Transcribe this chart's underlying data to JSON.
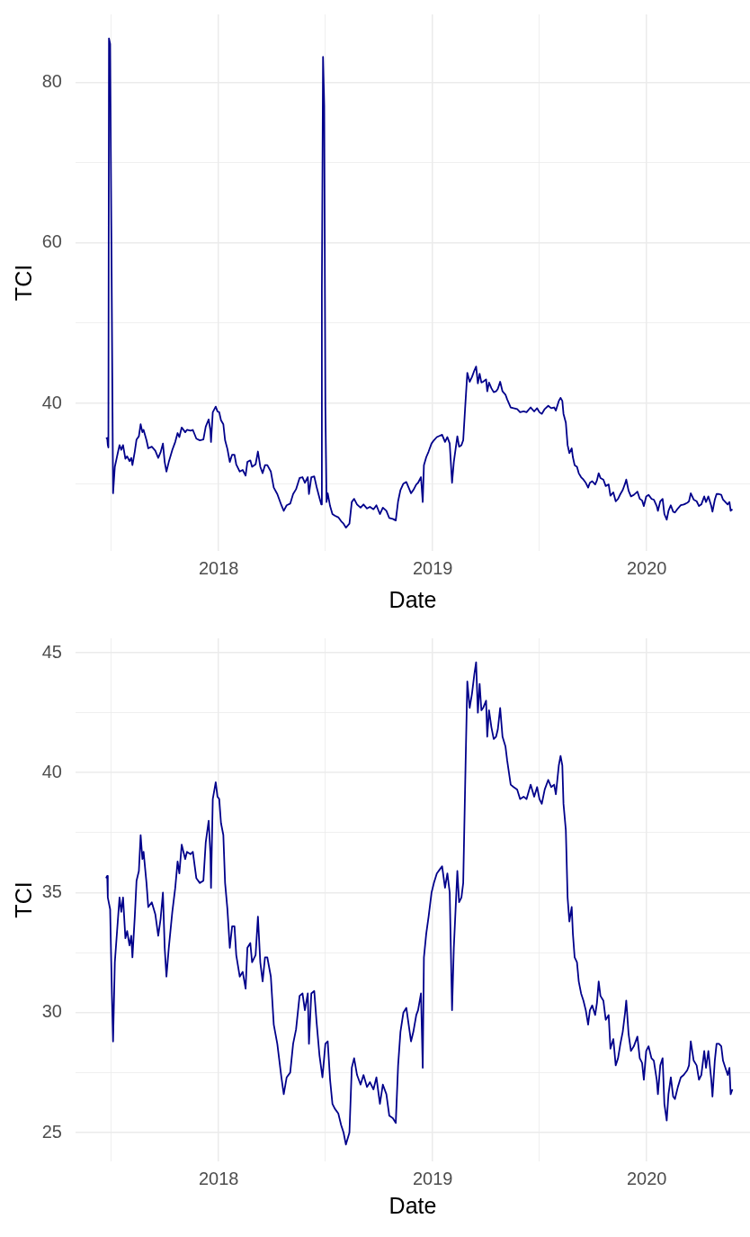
{
  "chart_data": [
    {
      "type": "line",
      "xlabel": "Date",
      "ylabel": "TCI",
      "color": "#00008b",
      "grid": true,
      "xlim": [
        "2017-05-02",
        "2020-06-25"
      ],
      "xticks": [
        {
          "value": "2017-07",
          "label": null
        },
        "2018",
        {
          "value": "2018-07",
          "label": null
        },
        "2019",
        {
          "value": "2019-07",
          "label": null
        },
        "2020"
      ],
      "ylim": [
        21.6,
        88.5
      ],
      "yticks": [
        {
          "value": 30,
          "label": null
        },
        40,
        {
          "value": 50,
          "label": null
        },
        60,
        {
          "value": 70,
          "label": null
        },
        80
      ],
      "x": [
        "2017-06-23",
        "2017-06-25",
        "2017-06-26",
        "2017-06-27",
        "2017-06-28",
        "2017-06-30",
        "2017-07-02",
        "2017-07-05",
        "2017-07-08",
        "2017-07-13",
        "2017-07-16",
        "2017-07-19",
        "2017-07-22",
        "2017-07-26",
        "2017-07-29",
        "2017-08-02",
        "2017-08-05",
        "2017-08-07",
        "2017-08-11",
        "2017-08-14",
        "2017-08-18",
        "2017-08-21",
        "2017-08-24",
        "2017-08-26",
        "2017-08-31",
        "2017-09-03",
        "2017-09-09",
        "2017-09-15",
        "2017-09-20",
        "2017-09-24",
        "2017-09-28",
        "2017-10-01",
        "2017-10-04",
        "2017-10-08",
        "2017-10-14",
        "2017-10-19",
        "2017-10-23",
        "2017-10-26",
        "2017-10-30",
        "2017-11-05",
        "2017-11-08",
        "2017-11-14",
        "2017-11-18",
        "2017-11-24",
        "2017-11-30",
        "2017-12-06",
        "2017-12-10",
        "2017-12-15",
        "2017-12-18",
        "2017-12-19",
        "2017-12-22",
        "2017-12-27",
        "2017-12-30",
        "2018-01-02",
        "2018-01-05",
        "2018-01-09",
        "2018-01-12",
        "2018-01-16",
        "2018-01-20",
        "2018-01-24",
        "2018-01-28",
        "2018-01-31",
        "2018-02-06",
        "2018-02-11",
        "2018-02-16",
        "2018-02-19",
        "2018-02-24",
        "2018-02-27",
        "2018-03-05",
        "2018-03-09",
        "2018-03-13",
        "2018-03-17",
        "2018-03-21",
        "2018-03-25",
        "2018-03-31",
        "2018-04-05",
        "2018-04-11",
        "2018-04-18",
        "2018-04-22",
        "2018-04-27",
        "2018-05-03",
        "2018-05-08",
        "2018-05-13",
        "2018-05-19",
        "2018-05-24",
        "2018-05-28",
        "2018-06-02",
        "2018-06-04",
        "2018-06-08",
        "2018-06-13",
        "2018-06-17",
        "2018-06-22",
        "2018-06-25",
        "2018-06-26",
        "2018-06-28",
        "2018-06-30",
        "2018-07-02",
        "2018-07-04",
        "2018-07-06",
        "2018-07-10",
        "2018-07-14",
        "2018-07-18",
        "2018-07-24",
        "2018-07-29",
        "2018-08-02",
        "2018-08-06",
        "2018-08-12",
        "2018-08-16",
        "2018-08-20",
        "2018-08-25",
        "2018-08-31",
        "2018-09-05",
        "2018-09-11",
        "2018-09-16",
        "2018-09-22",
        "2018-09-27",
        "2018-10-03",
        "2018-10-08",
        "2018-10-14",
        "2018-10-19",
        "2018-10-25",
        "2018-10-30",
        "2018-11-03",
        "2018-11-07",
        "2018-11-12",
        "2018-11-17",
        "2018-11-21",
        "2018-11-25",
        "2018-11-29",
        "2018-12-04",
        "2018-12-07",
        "2018-12-12",
        "2018-12-15",
        "2018-12-17",
        "2018-12-21",
        "2018-12-25",
        "2018-12-30",
        "2019-01-03",
        "2019-01-08",
        "2019-01-14",
        "2019-01-17",
        "2019-01-22",
        "2019-01-26",
        "2019-01-30",
        "2019-02-03",
        "2019-02-06",
        "2019-02-09",
        "2019-02-12",
        "2019-02-15",
        "2019-02-19",
        "2019-02-22",
        "2019-02-26",
        "2019-03-01",
        "2019-03-05",
        "2019-03-09",
        "2019-03-13",
        "2019-03-16",
        "2019-03-19",
        "2019-03-22",
        "2019-03-25",
        "2019-03-28",
        "2019-04-02",
        "2019-04-04",
        "2019-04-07",
        "2019-04-11",
        "2019-04-15",
        "2019-04-19",
        "2019-04-22",
        "2019-04-26",
        "2019-04-30",
        "2019-05-05",
        "2019-05-08",
        "2019-05-14",
        "2019-05-19",
        "2019-05-25",
        "2019-05-30",
        "2019-06-05",
        "2019-06-10",
        "2019-06-17",
        "2019-06-23",
        "2019-06-28",
        "2019-07-02",
        "2019-07-06",
        "2019-07-11",
        "2019-07-17",
        "2019-07-22",
        "2019-07-27",
        "2019-07-30",
        "2019-08-04",
        "2019-08-07",
        "2019-08-10",
        "2019-08-12",
        "2019-08-16",
        "2019-08-19",
        "2019-08-22",
        "2019-08-26",
        "2019-08-28",
        "2019-08-31",
        "2019-09-04",
        "2019-09-07",
        "2019-09-11",
        "2019-09-15",
        "2019-09-19",
        "2019-09-23",
        "2019-09-26",
        "2019-09-30",
        "2019-10-05",
        "2019-10-08",
        "2019-10-11",
        "2019-10-14",
        "2019-10-19",
        "2019-10-23",
        "2019-10-28",
        "2019-10-31",
        "2019-11-05",
        "2019-11-09",
        "2019-11-13",
        "2019-11-17",
        "2019-11-21",
        "2019-11-25",
        "2019-11-27",
        "2019-12-01",
        "2019-12-05",
        "2019-12-10",
        "2019-12-16",
        "2019-12-20",
        "2019-12-24",
        "2019-12-27",
        "2019-12-31",
        "2020-01-04",
        "2020-01-09",
        "2020-01-13",
        "2020-01-18",
        "2020-01-20",
        "2020-01-24",
        "2020-01-28",
        "2020-01-31",
        "2020-02-04",
        "2020-02-07",
        "2020-02-11",
        "2020-02-15",
        "2020-02-18",
        "2020-02-23",
        "2020-02-28",
        "2020-03-04",
        "2020-03-10",
        "2020-03-13",
        "2020-03-16",
        "2020-03-21",
        "2020-03-26",
        "2020-03-30",
        "2020-04-03",
        "2020-04-08",
        "2020-04-11",
        "2020-04-15",
        "2020-04-20",
        "2020-04-22",
        "2020-04-26",
        "2020-04-29",
        "2020-05-03",
        "2020-05-07",
        "2020-05-10",
        "2020-05-14",
        "2020-05-18",
        "2020-05-21",
        "2020-05-23",
        "2020-05-26"
      ],
      "values": [
        35.6,
        35.7,
        34.8,
        34.5,
        85.5,
        84.8,
        62.2,
        28.8,
        32.1,
        33.8,
        34.8,
        34.2,
        34.8,
        33.1,
        33.4,
        32.8,
        33.2,
        32.3,
        34.0,
        35.5,
        35.9,
        37.4,
        36.4,
        36.7,
        35.4,
        34.4,
        34.6,
        34.1,
        33.2,
        33.9,
        35.0,
        32.7,
        31.5,
        32.7,
        34.2,
        35.2,
        36.3,
        35.8,
        37.0,
        36.4,
        36.7,
        36.6,
        36.7,
        35.6,
        35.4,
        35.5,
        37.1,
        38.0,
        36.6,
        35.2,
        38.9,
        39.6,
        39.0,
        38.9,
        37.9,
        37.4,
        35.4,
        34.3,
        32.7,
        33.6,
        33.6,
        32.4,
        31.5,
        31.7,
        31.0,
        32.7,
        32.9,
        32.1,
        32.4,
        34.0,
        32.1,
        31.3,
        32.3,
        32.3,
        31.5,
        29.5,
        28.7,
        27.3,
        26.6,
        27.3,
        27.5,
        28.7,
        29.3,
        30.7,
        30.8,
        30.1,
        30.8,
        28.7,
        30.8,
        30.9,
        29.6,
        28.2,
        27.4,
        54.0,
        83.2,
        77.1,
        39.6,
        27.7,
        28.8,
        27.2,
        26.2,
        26.0,
        25.8,
        25.3,
        25.0,
        24.5,
        25.0,
        27.7,
        28.1,
        27.4,
        27.0,
        27.4,
        26.9,
        27.1,
        26.8,
        27.3,
        26.2,
        27.0,
        26.6,
        25.7,
        25.6,
        25.4,
        27.8,
        29.2,
        30.0,
        30.2,
        29.5,
        28.8,
        29.2,
        29.9,
        30.1,
        30.8,
        27.7,
        32.3,
        33.3,
        34.0,
        35.0,
        35.4,
        35.8,
        36.0,
        36.1,
        35.2,
        35.8,
        35.0,
        30.1,
        32.7,
        34.3,
        35.9,
        34.6,
        34.8,
        35.4,
        40.3,
        43.8,
        42.7,
        43.3,
        44.1,
        44.6,
        42.5,
        43.7,
        42.6,
        42.7,
        43.0,
        41.5,
        42.6,
        41.9,
        41.4,
        41.5,
        41.8,
        42.7,
        41.5,
        41.1,
        40.5,
        39.5,
        39.4,
        39.3,
        38.9,
        39.0,
        38.9,
        39.5,
        39.0,
        39.4,
        38.9,
        38.7,
        39.3,
        39.7,
        39.4,
        39.5,
        39.1,
        40.3,
        40.7,
        40.3,
        38.7,
        37.6,
        34.8,
        33.8,
        34.4,
        33.3,
        32.3,
        32.1,
        31.3,
        30.8,
        30.5,
        30.1,
        29.5,
        30.1,
        30.3,
        29.9,
        30.4,
        31.3,
        30.7,
        30.5,
        29.7,
        29.9,
        28.5,
        28.9,
        27.8,
        28.1,
        28.7,
        29.2,
        30.0,
        30.5,
        29.1,
        28.4,
        28.6,
        29.0,
        28.1,
        27.9,
        27.2,
        28.4,
        28.6,
        28.1,
        28.0,
        27.2,
        26.6,
        27.8,
        28.1,
        26.2,
        25.5,
        26.6,
        27.3,
        26.5,
        26.4,
        26.9,
        27.3,
        27.4,
        27.6,
        27.8,
        28.8,
        28.0,
        27.8,
        27.2,
        27.4,
        28.4,
        27.7,
        28.4,
        27.2,
        26.5,
        28.0,
        28.7,
        28.7,
        28.6,
        28.0,
        27.7,
        27.4,
        27.7,
        26.6,
        26.8
      ]
    },
    {
      "type": "line",
      "xlabel": "Date",
      "ylabel": "TCI",
      "color": "#00008b",
      "grid": true,
      "xlim": [
        "2017-05-02",
        "2020-06-25"
      ],
      "xticks": [
        {
          "value": "2017-07",
          "label": null
        },
        "2018",
        {
          "value": "2018-07",
          "label": null
        },
        "2019",
        {
          "value": "2019-07",
          "label": null
        },
        "2020"
      ],
      "ylim": [
        23.8,
        45.6
      ],
      "yticks": [
        25,
        {
          "value": 27.5,
          "label": null
        },
        30,
        {
          "value": 32.5,
          "label": null
        },
        35,
        {
          "value": 37.5,
          "label": null
        },
        40,
        {
          "value": 42.5,
          "label": null
        },
        45
      ],
      "x": [
        "2017-06-23",
        "2017-06-25",
        "2017-06-26",
        "2017-06-30",
        "2017-07-03",
        "2017-07-05",
        "2017-07-08",
        "2017-07-13",
        "2017-07-16",
        "2017-07-19",
        "2017-07-22",
        "2017-07-26",
        "2017-07-29",
        "2017-08-02",
        "2017-08-05",
        "2017-08-07",
        "2017-08-11",
        "2017-08-14",
        "2017-08-18",
        "2017-08-21",
        "2017-08-24",
        "2017-08-26",
        "2017-08-31",
        "2017-09-03",
        "2017-09-09",
        "2017-09-15",
        "2017-09-20",
        "2017-09-24",
        "2017-09-28",
        "2017-10-01",
        "2017-10-04",
        "2017-10-08",
        "2017-10-14",
        "2017-10-19",
        "2017-10-23",
        "2017-10-26",
        "2017-10-30",
        "2017-11-05",
        "2017-11-08",
        "2017-11-14",
        "2017-11-18",
        "2017-11-24",
        "2017-11-30",
        "2017-12-06",
        "2017-12-10",
        "2017-12-15",
        "2017-12-18",
        "2017-12-19",
        "2017-12-22",
        "2017-12-27",
        "2017-12-30",
        "2018-01-02",
        "2018-01-05",
        "2018-01-09",
        "2018-01-12",
        "2018-01-16",
        "2018-01-20",
        "2018-01-24",
        "2018-01-28",
        "2018-01-31",
        "2018-02-06",
        "2018-02-11",
        "2018-02-16",
        "2018-02-19",
        "2018-02-24",
        "2018-02-27",
        "2018-03-05",
        "2018-03-09",
        "2018-03-13",
        "2018-03-17",
        "2018-03-21",
        "2018-03-25",
        "2018-03-31",
        "2018-04-05",
        "2018-04-11",
        "2018-04-18",
        "2018-04-22",
        "2018-04-27",
        "2018-05-03",
        "2018-05-08",
        "2018-05-13",
        "2018-05-19",
        "2018-05-24",
        "2018-05-28",
        "2018-06-02",
        "2018-06-04",
        "2018-06-08",
        "2018-06-13",
        "2018-06-17",
        "2018-06-22",
        "2018-06-27",
        "2018-07-02",
        "2018-07-06",
        "2018-07-10",
        "2018-07-14",
        "2018-07-18",
        "2018-07-24",
        "2018-07-29",
        "2018-08-02",
        "2018-08-06",
        "2018-08-12",
        "2018-08-16",
        "2018-08-20",
        "2018-08-25",
        "2018-08-31",
        "2018-09-05",
        "2018-09-11",
        "2018-09-16",
        "2018-09-22",
        "2018-09-27",
        "2018-10-03",
        "2018-10-08",
        "2018-10-14",
        "2018-10-19",
        "2018-10-25",
        "2018-10-30",
        "2018-11-03",
        "2018-11-07",
        "2018-11-12",
        "2018-11-17",
        "2018-11-21",
        "2018-11-25",
        "2018-11-29",
        "2018-12-04",
        "2018-12-07",
        "2018-12-12",
        "2018-12-15",
        "2018-12-17",
        "2018-12-21",
        "2018-12-25",
        "2018-12-30",
        "2019-01-03",
        "2019-01-08",
        "2019-01-14",
        "2019-01-17",
        "2019-01-22",
        "2019-01-26",
        "2019-01-30",
        "2019-02-03",
        "2019-02-06",
        "2019-02-09",
        "2019-02-12",
        "2019-02-15",
        "2019-02-19",
        "2019-02-22",
        "2019-02-26",
        "2019-03-01",
        "2019-03-05",
        "2019-03-09",
        "2019-03-13",
        "2019-03-16",
        "2019-03-19",
        "2019-03-22",
        "2019-03-25",
        "2019-03-28",
        "2019-04-02",
        "2019-04-04",
        "2019-04-07",
        "2019-04-11",
        "2019-04-15",
        "2019-04-19",
        "2019-04-22",
        "2019-04-26",
        "2019-04-30",
        "2019-05-05",
        "2019-05-08",
        "2019-05-14",
        "2019-05-19",
        "2019-05-25",
        "2019-05-30",
        "2019-06-05",
        "2019-06-10",
        "2019-06-17",
        "2019-06-23",
        "2019-06-28",
        "2019-07-02",
        "2019-07-06",
        "2019-07-11",
        "2019-07-17",
        "2019-07-22",
        "2019-07-27",
        "2019-07-30",
        "2019-08-04",
        "2019-08-07",
        "2019-08-10",
        "2019-08-12",
        "2019-08-16",
        "2019-08-19",
        "2019-08-22",
        "2019-08-26",
        "2019-08-28",
        "2019-08-31",
        "2019-09-04",
        "2019-09-07",
        "2019-09-11",
        "2019-09-15",
        "2019-09-19",
        "2019-09-23",
        "2019-09-26",
        "2019-09-30",
        "2019-10-05",
        "2019-10-08",
        "2019-10-11",
        "2019-10-14",
        "2019-10-19",
        "2019-10-23",
        "2019-10-28",
        "2019-10-31",
        "2019-11-05",
        "2019-11-09",
        "2019-11-13",
        "2019-11-17",
        "2019-11-21",
        "2019-11-25",
        "2019-11-27",
        "2019-12-01",
        "2019-12-05",
        "2019-12-10",
        "2019-12-16",
        "2019-12-20",
        "2019-12-24",
        "2019-12-27",
        "2019-12-31",
        "2020-01-04",
        "2020-01-09",
        "2020-01-13",
        "2020-01-18",
        "2020-01-20",
        "2020-01-24",
        "2020-01-28",
        "2020-01-31",
        "2020-02-04",
        "2020-02-07",
        "2020-02-11",
        "2020-02-15",
        "2020-02-18",
        "2020-02-23",
        "2020-02-28",
        "2020-03-04",
        "2020-03-10",
        "2020-03-13",
        "2020-03-16",
        "2020-03-21",
        "2020-03-26",
        "2020-03-30",
        "2020-04-03",
        "2020-04-08",
        "2020-04-11",
        "2020-04-15",
        "2020-04-20",
        "2020-04-22",
        "2020-04-26",
        "2020-04-29",
        "2020-05-03",
        "2020-05-07",
        "2020-05-10",
        "2020-05-14",
        "2020-05-18",
        "2020-05-21",
        "2020-05-23",
        "2020-05-26"
      ],
      "values": [
        35.6,
        35.7,
        34.8,
        34.3,
        30.8,
        28.8,
        32.1,
        33.8,
        34.8,
        34.2,
        34.8,
        33.1,
        33.4,
        32.8,
        33.2,
        32.3,
        34.0,
        35.5,
        35.9,
        37.4,
        36.4,
        36.7,
        35.4,
        34.4,
        34.6,
        34.1,
        33.2,
        33.9,
        35.0,
        32.7,
        31.5,
        32.7,
        34.2,
        35.2,
        36.3,
        35.8,
        37.0,
        36.4,
        36.7,
        36.6,
        36.7,
        35.6,
        35.4,
        35.5,
        37.1,
        38.0,
        36.6,
        35.2,
        38.9,
        39.6,
        39.0,
        38.9,
        37.9,
        37.4,
        35.4,
        34.3,
        32.7,
        33.6,
        33.6,
        32.4,
        31.5,
        31.7,
        31.0,
        32.7,
        32.9,
        32.1,
        32.4,
        34.0,
        32.1,
        31.3,
        32.3,
        32.3,
        31.5,
        29.5,
        28.7,
        27.3,
        26.6,
        27.3,
        27.5,
        28.7,
        29.3,
        30.7,
        30.8,
        30.1,
        30.8,
        28.7,
        30.8,
        30.9,
        29.6,
        28.2,
        27.3,
        28.7,
        28.8,
        27.2,
        26.2,
        26.0,
        25.8,
        25.3,
        25.0,
        24.5,
        25.0,
        27.7,
        28.1,
        27.4,
        27.0,
        27.4,
        26.9,
        27.1,
        26.8,
        27.3,
        26.2,
        27.0,
        26.6,
        25.7,
        25.6,
        25.4,
        27.8,
        29.2,
        30.0,
        30.2,
        29.5,
        28.8,
        29.2,
        29.9,
        30.1,
        30.8,
        27.7,
        32.3,
        33.3,
        34.0,
        35.0,
        35.4,
        35.8,
        36.0,
        36.1,
        35.2,
        35.8,
        35.0,
        30.1,
        32.7,
        34.3,
        35.9,
        34.6,
        34.8,
        35.4,
        40.3,
        43.8,
        42.7,
        43.3,
        44.1,
        44.6,
        42.5,
        43.7,
        42.6,
        42.7,
        43.0,
        41.5,
        42.6,
        41.9,
        41.4,
        41.5,
        41.8,
        42.7,
        41.5,
        41.1,
        40.5,
        39.5,
        39.4,
        39.3,
        38.9,
        39.0,
        38.9,
        39.5,
        39.0,
        39.4,
        38.9,
        38.7,
        39.3,
        39.7,
        39.4,
        39.5,
        39.1,
        40.3,
        40.7,
        40.3,
        38.7,
        37.6,
        34.8,
        33.8,
        34.4,
        33.3,
        32.3,
        32.1,
        31.3,
        30.8,
        30.5,
        30.1,
        29.5,
        30.1,
        30.3,
        29.9,
        30.4,
        31.3,
        30.7,
        30.5,
        29.7,
        29.9,
        28.5,
        28.9,
        27.8,
        28.1,
        28.7,
        29.2,
        30.0,
        30.5,
        29.1,
        28.4,
        28.6,
        29.0,
        28.1,
        27.9,
        27.2,
        28.4,
        28.6,
        28.1,
        28.0,
        27.2,
        26.6,
        27.8,
        28.1,
        26.2,
        25.5,
        26.6,
        27.3,
        26.5,
        26.4,
        26.9,
        27.3,
        27.4,
        27.6,
        27.8,
        28.8,
        28.0,
        27.8,
        27.2,
        27.4,
        28.4,
        27.7,
        28.4,
        27.2,
        26.5,
        28.0,
        28.7,
        28.7,
        28.6,
        28.0,
        27.7,
        27.4,
        27.7,
        26.6,
        26.8
      ]
    }
  ]
}
